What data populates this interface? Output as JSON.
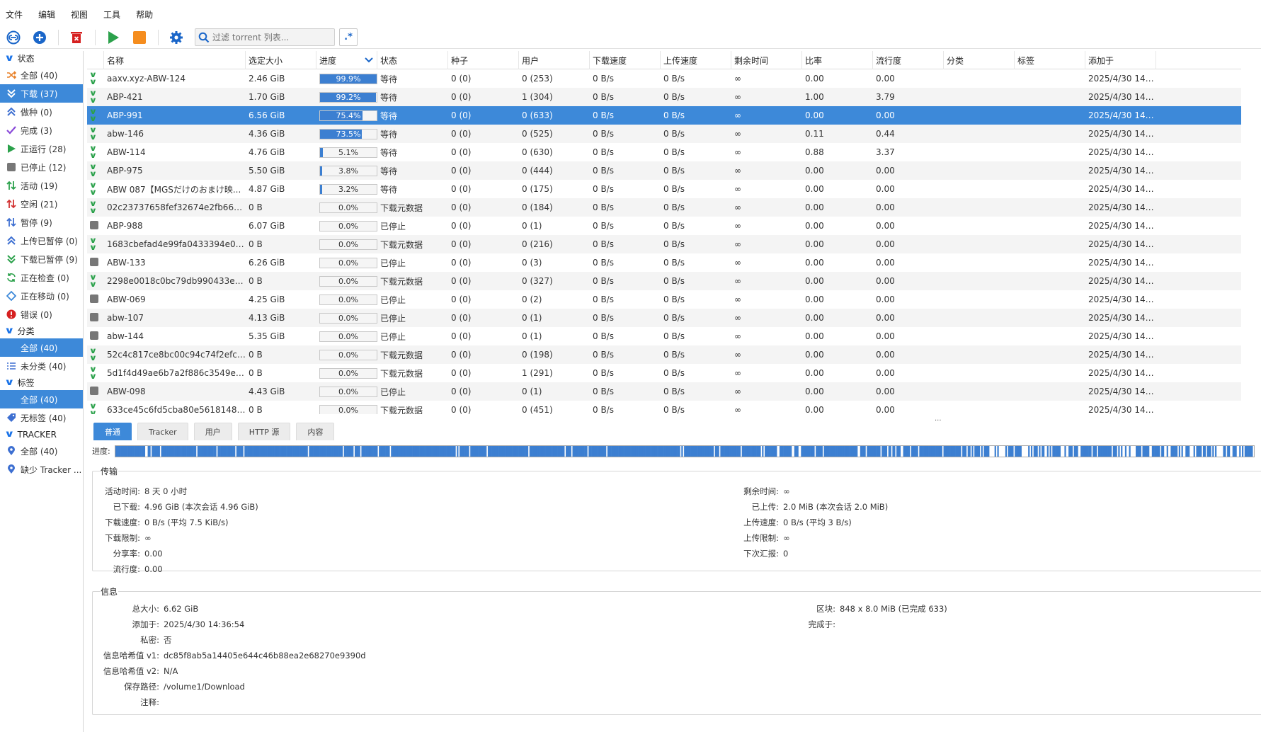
{
  "menu": [
    "文件",
    "编辑",
    "视图",
    "工具",
    "帮助"
  ],
  "toolbar": {
    "filter_placeholder": "过滤 torrent 列表...",
    "regex_label": ".*"
  },
  "sidebar": {
    "status_header": "状态",
    "status_items": [
      {
        "label": "全部 (40)",
        "icon": "shuffle-icon",
        "color": "#e8822a",
        "selected": false
      },
      {
        "label": "下载 (37)",
        "icon": "download-icon",
        "color": "#2ba14b",
        "selected": true
      },
      {
        "label": "做种 (0)",
        "icon": "upload-icon",
        "color": "#3d6fd1",
        "selected": false
      },
      {
        "label": "完成 (3)",
        "icon": "check-icon",
        "color": "#8a4ad9",
        "selected": false
      },
      {
        "label": "正运行 (28)",
        "icon": "play-icon",
        "color": "#2ba14b",
        "selected": false
      },
      {
        "label": "已停止 (12)",
        "icon": "stop-icon",
        "color": "#777777",
        "selected": false
      },
      {
        "label": "活动 (19)",
        "icon": "arrows-icon",
        "color": "#2ba14b",
        "selected": false
      },
      {
        "label": "空闲 (21)",
        "icon": "arrows-icon",
        "color": "#d23232",
        "selected": false
      },
      {
        "label": "暂停 (9)",
        "icon": "arrows-icon",
        "color": "#3d6fd1",
        "selected": false
      },
      {
        "label": "上传已暂停 (0)",
        "icon": "upload-icon",
        "color": "#3d6fd1",
        "selected": false
      },
      {
        "label": "下载已暂停 (9)",
        "icon": "download-icon",
        "color": "#2ba14b",
        "selected": false
      },
      {
        "label": "正在检查 (0)",
        "icon": "refresh-icon",
        "color": "#2ba14b",
        "selected": false
      },
      {
        "label": "正在移动 (0)",
        "icon": "move-icon",
        "color": "#3d89d9",
        "selected": false
      },
      {
        "label": "错误 (0)",
        "icon": "error-icon",
        "color": "#d62020",
        "selected": false
      }
    ],
    "category_header": "分类",
    "category_items": [
      {
        "label": "全部 (40)",
        "icon": "",
        "selected": true
      },
      {
        "label": "未分类 (40)",
        "icon": "list-icon",
        "selected": false
      }
    ],
    "tag_header": "标签",
    "tag_items": [
      {
        "label": "全部 (40)",
        "icon": "",
        "selected": true
      },
      {
        "label": "无标签 (40)",
        "icon": "tag-icon",
        "selected": false
      }
    ],
    "tracker_header": "TRACKER",
    "tracker_items": [
      {
        "label": "全部 (40)",
        "icon": "pin-icon",
        "selected": false
      },
      {
        "label": "缺少 Tracker ...",
        "icon": "pin-icon",
        "selected": false
      }
    ]
  },
  "table": {
    "columns": [
      "名称",
      "选定大小",
      "进度",
      "状态",
      "种子",
      "用户",
      "下载速度",
      "上传速度",
      "剩余时间",
      "比率",
      "流行度",
      "分类",
      "标签",
      "添加于"
    ],
    "rows": [
      {
        "icon": "download",
        "name": "aaxv.xyz-ABW-124",
        "size": "2.46 GiB",
        "progress": 99.9,
        "progress_text": "99.9%",
        "status": "等待",
        "seeds": "0 (0)",
        "peers": "0 (253)",
        "dl": "0 B/s",
        "ul": "0 B/s",
        "eta": "∞",
        "ratio": "0.00",
        "pop": "0.00",
        "cat": "",
        "tag": "",
        "added": "2025/4/30 14:3..."
      },
      {
        "icon": "download",
        "name": "ABP-421",
        "size": "1.70 GiB",
        "progress": 99.2,
        "progress_text": "99.2%",
        "status": "等待",
        "seeds": "0 (0)",
        "peers": "1 (304)",
        "dl": "0 B/s",
        "ul": "0 B/s",
        "eta": "∞",
        "ratio": "1.00",
        "pop": "3.79",
        "cat": "",
        "tag": "",
        "added": "2025/4/30 14:3..."
      },
      {
        "icon": "download",
        "name": "ABP-991",
        "size": "6.56 GiB",
        "progress": 75.4,
        "progress_text": "75.4%",
        "status": "等待",
        "seeds": "0 (0)",
        "peers": "0 (633)",
        "dl": "0 B/s",
        "ul": "0 B/s",
        "eta": "∞",
        "ratio": "0.00",
        "pop": "0.00",
        "cat": "",
        "tag": "",
        "added": "2025/4/30 14:3...",
        "selected": true
      },
      {
        "icon": "download",
        "name": "abw-146",
        "size": "4.36 GiB",
        "progress": 73.5,
        "progress_text": "73.5%",
        "status": "等待",
        "seeds": "0 (0)",
        "peers": "0 (525)",
        "dl": "0 B/s",
        "ul": "0 B/s",
        "eta": "∞",
        "ratio": "0.11",
        "pop": "0.44",
        "cat": "",
        "tag": "",
        "added": "2025/4/30 14:3..."
      },
      {
        "icon": "download",
        "name": "ABW-114",
        "size": "4.76 GiB",
        "progress": 5.1,
        "progress_text": "5.1%",
        "status": "等待",
        "seeds": "0 (0)",
        "peers": "0 (630)",
        "dl": "0 B/s",
        "ul": "0 B/s",
        "eta": "∞",
        "ratio": "0.88",
        "pop": "3.37",
        "cat": "",
        "tag": "",
        "added": "2025/4/30 14:3..."
      },
      {
        "icon": "download",
        "name": "ABP-975",
        "size": "5.50 GiB",
        "progress": 3.8,
        "progress_text": "3.8%",
        "status": "等待",
        "seeds": "0 (0)",
        "peers": "0 (444)",
        "dl": "0 B/s",
        "ul": "0 B/s",
        "eta": "∞",
        "ratio": "0.00",
        "pop": "0.00",
        "cat": "",
        "tag": "",
        "added": "2025/4/30 14:3..."
      },
      {
        "icon": "download",
        "name": "ABW 087【MGSだけのおまけ映...",
        "size": "4.87 GiB",
        "progress": 3.2,
        "progress_text": "3.2%",
        "status": "等待",
        "seeds": "0 (0)",
        "peers": "0 (175)",
        "dl": "0 B/s",
        "ul": "0 B/s",
        "eta": "∞",
        "ratio": "0.00",
        "pop": "0.00",
        "cat": "",
        "tag": "",
        "added": "2025/4/30 14:3..."
      },
      {
        "icon": "download",
        "name": "02c23737658fef32674e2fb662adf...",
        "size": "0 B",
        "progress": 0,
        "progress_text": "0.0%",
        "status": "下载元数据",
        "seeds": "0 (0)",
        "peers": "0 (184)",
        "dl": "0 B/s",
        "ul": "0 B/s",
        "eta": "∞",
        "ratio": "0.00",
        "pop": "0.00",
        "cat": "",
        "tag": "",
        "added": "2025/4/30 14:3..."
      },
      {
        "icon": "stop",
        "name": "ABP-988",
        "size": "6.07 GiB",
        "progress": 0,
        "progress_text": "0.0%",
        "status": "已停止",
        "seeds": "0 (0)",
        "peers": "0 (1)",
        "dl": "0 B/s",
        "ul": "0 B/s",
        "eta": "∞",
        "ratio": "0.00",
        "pop": "0.00",
        "cat": "",
        "tag": "",
        "added": "2025/4/30 14:3..."
      },
      {
        "icon": "download",
        "name": "1683cbefad4e99fa0433394e0e3b...",
        "size": "0 B",
        "progress": 0,
        "progress_text": "0.0%",
        "status": "下载元数据",
        "seeds": "0 (0)",
        "peers": "0 (216)",
        "dl": "0 B/s",
        "ul": "0 B/s",
        "eta": "∞",
        "ratio": "0.00",
        "pop": "0.00",
        "cat": "",
        "tag": "",
        "added": "2025/4/30 14:3..."
      },
      {
        "icon": "stop",
        "name": "ABW-133",
        "size": "6.26 GiB",
        "progress": 0,
        "progress_text": "0.0%",
        "status": "已停止",
        "seeds": "0 (0)",
        "peers": "0 (3)",
        "dl": "0 B/s",
        "ul": "0 B/s",
        "eta": "∞",
        "ratio": "0.00",
        "pop": "0.00",
        "cat": "",
        "tag": "",
        "added": "2025/4/30 14:3..."
      },
      {
        "icon": "download",
        "name": "2298e0018c0bc79db990433e99d...",
        "size": "0 B",
        "progress": 0,
        "progress_text": "0.0%",
        "status": "下载元数据",
        "seeds": "0 (0)",
        "peers": "0 (327)",
        "dl": "0 B/s",
        "ul": "0 B/s",
        "eta": "∞",
        "ratio": "0.00",
        "pop": "0.00",
        "cat": "",
        "tag": "",
        "added": "2025/4/30 14:3..."
      },
      {
        "icon": "stop",
        "name": "ABW-069",
        "size": "4.25 GiB",
        "progress": 0,
        "progress_text": "0.0%",
        "status": "已停止",
        "seeds": "0 (0)",
        "peers": "0 (2)",
        "dl": "0 B/s",
        "ul": "0 B/s",
        "eta": "∞",
        "ratio": "0.00",
        "pop": "0.00",
        "cat": "",
        "tag": "",
        "added": "2025/4/30 14:3..."
      },
      {
        "icon": "stop",
        "name": "abw-107",
        "size": "4.13 GiB",
        "progress": 0,
        "progress_text": "0.0%",
        "status": "已停止",
        "seeds": "0 (0)",
        "peers": "0 (1)",
        "dl": "0 B/s",
        "ul": "0 B/s",
        "eta": "∞",
        "ratio": "0.00",
        "pop": "0.00",
        "cat": "",
        "tag": "",
        "added": "2025/4/30 14:3..."
      },
      {
        "icon": "stop",
        "name": "abw-144",
        "size": "5.35 GiB",
        "progress": 0,
        "progress_text": "0.0%",
        "status": "已停止",
        "seeds": "0 (0)",
        "peers": "0 (1)",
        "dl": "0 B/s",
        "ul": "0 B/s",
        "eta": "∞",
        "ratio": "0.00",
        "pop": "0.00",
        "cat": "",
        "tag": "",
        "added": "2025/4/30 14:3..."
      },
      {
        "icon": "download",
        "name": "52c4c817ce8bc00c94c74f2efc65f...",
        "size": "0 B",
        "progress": 0,
        "progress_text": "0.0%",
        "status": "下载元数据",
        "seeds": "0 (0)",
        "peers": "0 (198)",
        "dl": "0 B/s",
        "ul": "0 B/s",
        "eta": "∞",
        "ratio": "0.00",
        "pop": "0.00",
        "cat": "",
        "tag": "",
        "added": "2025/4/30 14:3..."
      },
      {
        "icon": "download",
        "name": "5d1f4d49ae6b7a2f886c3549e202...",
        "size": "0 B",
        "progress": 0,
        "progress_text": "0.0%",
        "status": "下载元数据",
        "seeds": "0 (0)",
        "peers": "1 (291)",
        "dl": "0 B/s",
        "ul": "0 B/s",
        "eta": "∞",
        "ratio": "0.00",
        "pop": "0.00",
        "cat": "",
        "tag": "",
        "added": "2025/4/30 14:3..."
      },
      {
        "icon": "stop",
        "name": "ABW-098",
        "size": "4.43 GiB",
        "progress": 0,
        "progress_text": "0.0%",
        "status": "已停止",
        "seeds": "0 (0)",
        "peers": "0 (1)",
        "dl": "0 B/s",
        "ul": "0 B/s",
        "eta": "∞",
        "ratio": "0.00",
        "pop": "0.00",
        "cat": "",
        "tag": "",
        "added": "2025/4/30 14:3..."
      },
      {
        "icon": "download",
        "name": "633ce45c6fd5cba80e5618148e7e...",
        "size": "0 B",
        "progress": 0,
        "progress_text": "0.0%",
        "status": "下载元数据",
        "seeds": "0 (0)",
        "peers": "0 (451)",
        "dl": "0 B/s",
        "ul": "0 B/s",
        "eta": "∞",
        "ratio": "0.00",
        "pop": "0.00",
        "cat": "",
        "tag": "",
        "added": "2025/4/30 14:3..."
      }
    ]
  },
  "splitter": "...",
  "detail_tabs": [
    {
      "label": "普通",
      "active": true
    },
    {
      "label": "Tracker",
      "active": false
    },
    {
      "label": "用户",
      "active": false
    },
    {
      "label": "HTTP 源",
      "active": false
    },
    {
      "label": "内容",
      "active": false
    }
  ],
  "progress_label": "进度:",
  "transfer": {
    "legend": "传输",
    "left": [
      {
        "k": "活动时间:",
        "v": "8 天 0 小时"
      },
      {
        "k": "已下载:",
        "v": "4.96 GiB (本次会话 4.96 GiB)"
      },
      {
        "k": "下载速度:",
        "v": "0 B/s (平均 7.5 KiB/s)"
      },
      {
        "k": "下载限制:",
        "v": "∞"
      },
      {
        "k": "分享率:",
        "v": "0.00"
      },
      {
        "k": "流行度:",
        "v": "0.00"
      }
    ],
    "right": [
      {
        "k": "剩余时间:",
        "v": "∞"
      },
      {
        "k": "已上传:",
        "v": "2.0 MiB (本次会话 2.0 MiB)"
      },
      {
        "k": "上传速度:",
        "v": "0 B/s (平均 3 B/s)"
      },
      {
        "k": "上传限制:",
        "v": "∞"
      },
      {
        "k": "下次汇报:",
        "v": "0"
      }
    ]
  },
  "info": {
    "legend": "信息",
    "left": [
      {
        "k": "总大小:",
        "v": "6.62 GiB"
      },
      {
        "k": "添加于:",
        "v": "2025/4/30 14:36:54"
      },
      {
        "k": "私密:",
        "v": "否"
      },
      {
        "k": "信息哈希值 v1:",
        "v": "dc85f8ab5a14405e644c46b88ea2e68270e9390d"
      },
      {
        "k": "信息哈希值 v2:",
        "v": "N/A"
      },
      {
        "k": "保存路径:",
        "v": "/volume1/Download"
      },
      {
        "k": "注释:",
        "v": ""
      }
    ],
    "right": [
      {
        "k": "区块:",
        "v": "848 x 8.0 MiB (已完成 633)"
      },
      {
        "k": "完成于:",
        "v": ""
      }
    ]
  },
  "colors": {
    "accent": "#3d89d9",
    "progress_fill": "#3c7fd1",
    "download_green": "#2ba14b",
    "danger": "#d62020",
    "stop_orange": "#f58d1e"
  }
}
